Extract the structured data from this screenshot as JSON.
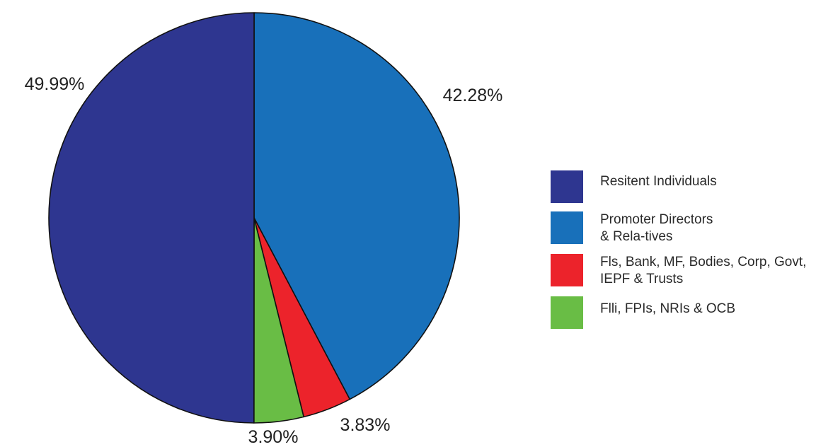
{
  "chart_data": {
    "type": "pie",
    "slices": [
      {
        "label": "Promoter Directors & Relatives",
        "value": 42.28,
        "display": "42.28%",
        "color": "#1870BA"
      },
      {
        "label": "Fls, Bank, MF, Bodies, Corp, Govt, IEPF & Trusts",
        "value": 3.83,
        "display": "3.83%",
        "color": "#EC232B"
      },
      {
        "label": "Flli, FPIs, NRIs & OCB",
        "value": 3.9,
        "display": "3.90%",
        "color": "#69BD45"
      },
      {
        "label": "Resitent Individuals",
        "value": 49.99,
        "display": "49.99%",
        "color": "#2E3690"
      }
    ],
    "legend": {
      "placement": "right",
      "items": [
        {
          "label": "Resitent Individuals",
          "color": "#2E3690"
        },
        {
          "label": "Promoter Directors & Rela-tives",
          "color": "#1870BA"
        },
        {
          "label": "Fls, Bank, MF, Bodies, Corp, Govt, IEPF & Trusts",
          "color": "#EC232B"
        },
        {
          "label": "Flli, FPIs, NRIs & OCB",
          "color": "#69BD45"
        }
      ]
    }
  }
}
